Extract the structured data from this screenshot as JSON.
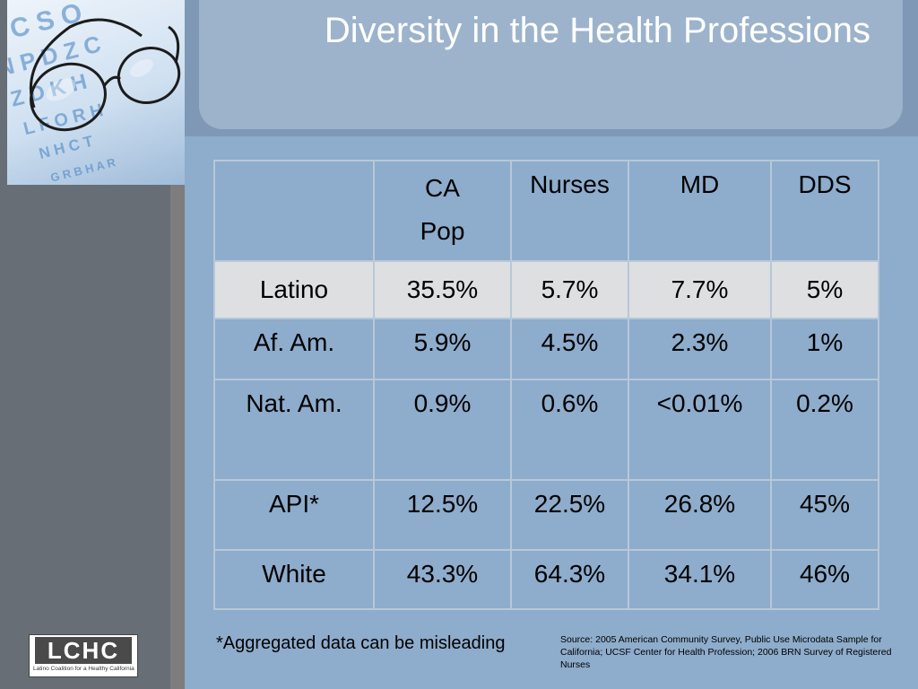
{
  "slide": {
    "title": "Diversity in the Health Professions",
    "footnote": "*Aggregated data can be misleading",
    "source": "Source: 2005 American Community Survey, Public Use Microdata Sample for California; UCSF Center for Health Profession;  2006 BRN Survey of Registered Nurses"
  },
  "logo": {
    "text": "LCHC",
    "subtitle": "Latino Coalition for a Healthy California"
  },
  "photo": {
    "chart_rows": [
      "E  C  S  O",
      "N P D Z C",
      "Z  D  K  H",
      "L F O R H",
      "N H  C  T",
      "G R B H A R"
    ]
  },
  "table": {
    "header": {
      "col1_line1": "CA",
      "col1_line2": "Pop",
      "col2": "Nurses",
      "col3": "MD",
      "col4": "DDS"
    },
    "rows": [
      {
        "label": "Latino",
        "ca_pop": "35.5%",
        "nurses": "5.7%",
        "md": "7.7%",
        "dds": "5%"
      },
      {
        "label": "Af. Am.",
        "ca_pop": "5.9%",
        "nurses": "4.5%",
        "md": "2.3%",
        "dds": "1%"
      },
      {
        "label": "Nat. Am.",
        "ca_pop": "0.9%",
        "nurses": "0.6%",
        "md": "<0.01%",
        "dds": "0.2%"
      },
      {
        "label": "API*",
        "ca_pop": "12.5%",
        "nurses": "22.5%",
        "md": "26.8%",
        "dds": "45%"
      },
      {
        "label": "White",
        "ca_pop": "43.3%",
        "nurses": "64.3%",
        "md": "34.1%",
        "dds": "46%"
      }
    ]
  },
  "colors": {
    "background": "#8eaccb",
    "left_band": "#676e76",
    "title_panel": "#9cb3cb",
    "highlight_row": "#dedfe1",
    "title_text": "#ffffff"
  }
}
